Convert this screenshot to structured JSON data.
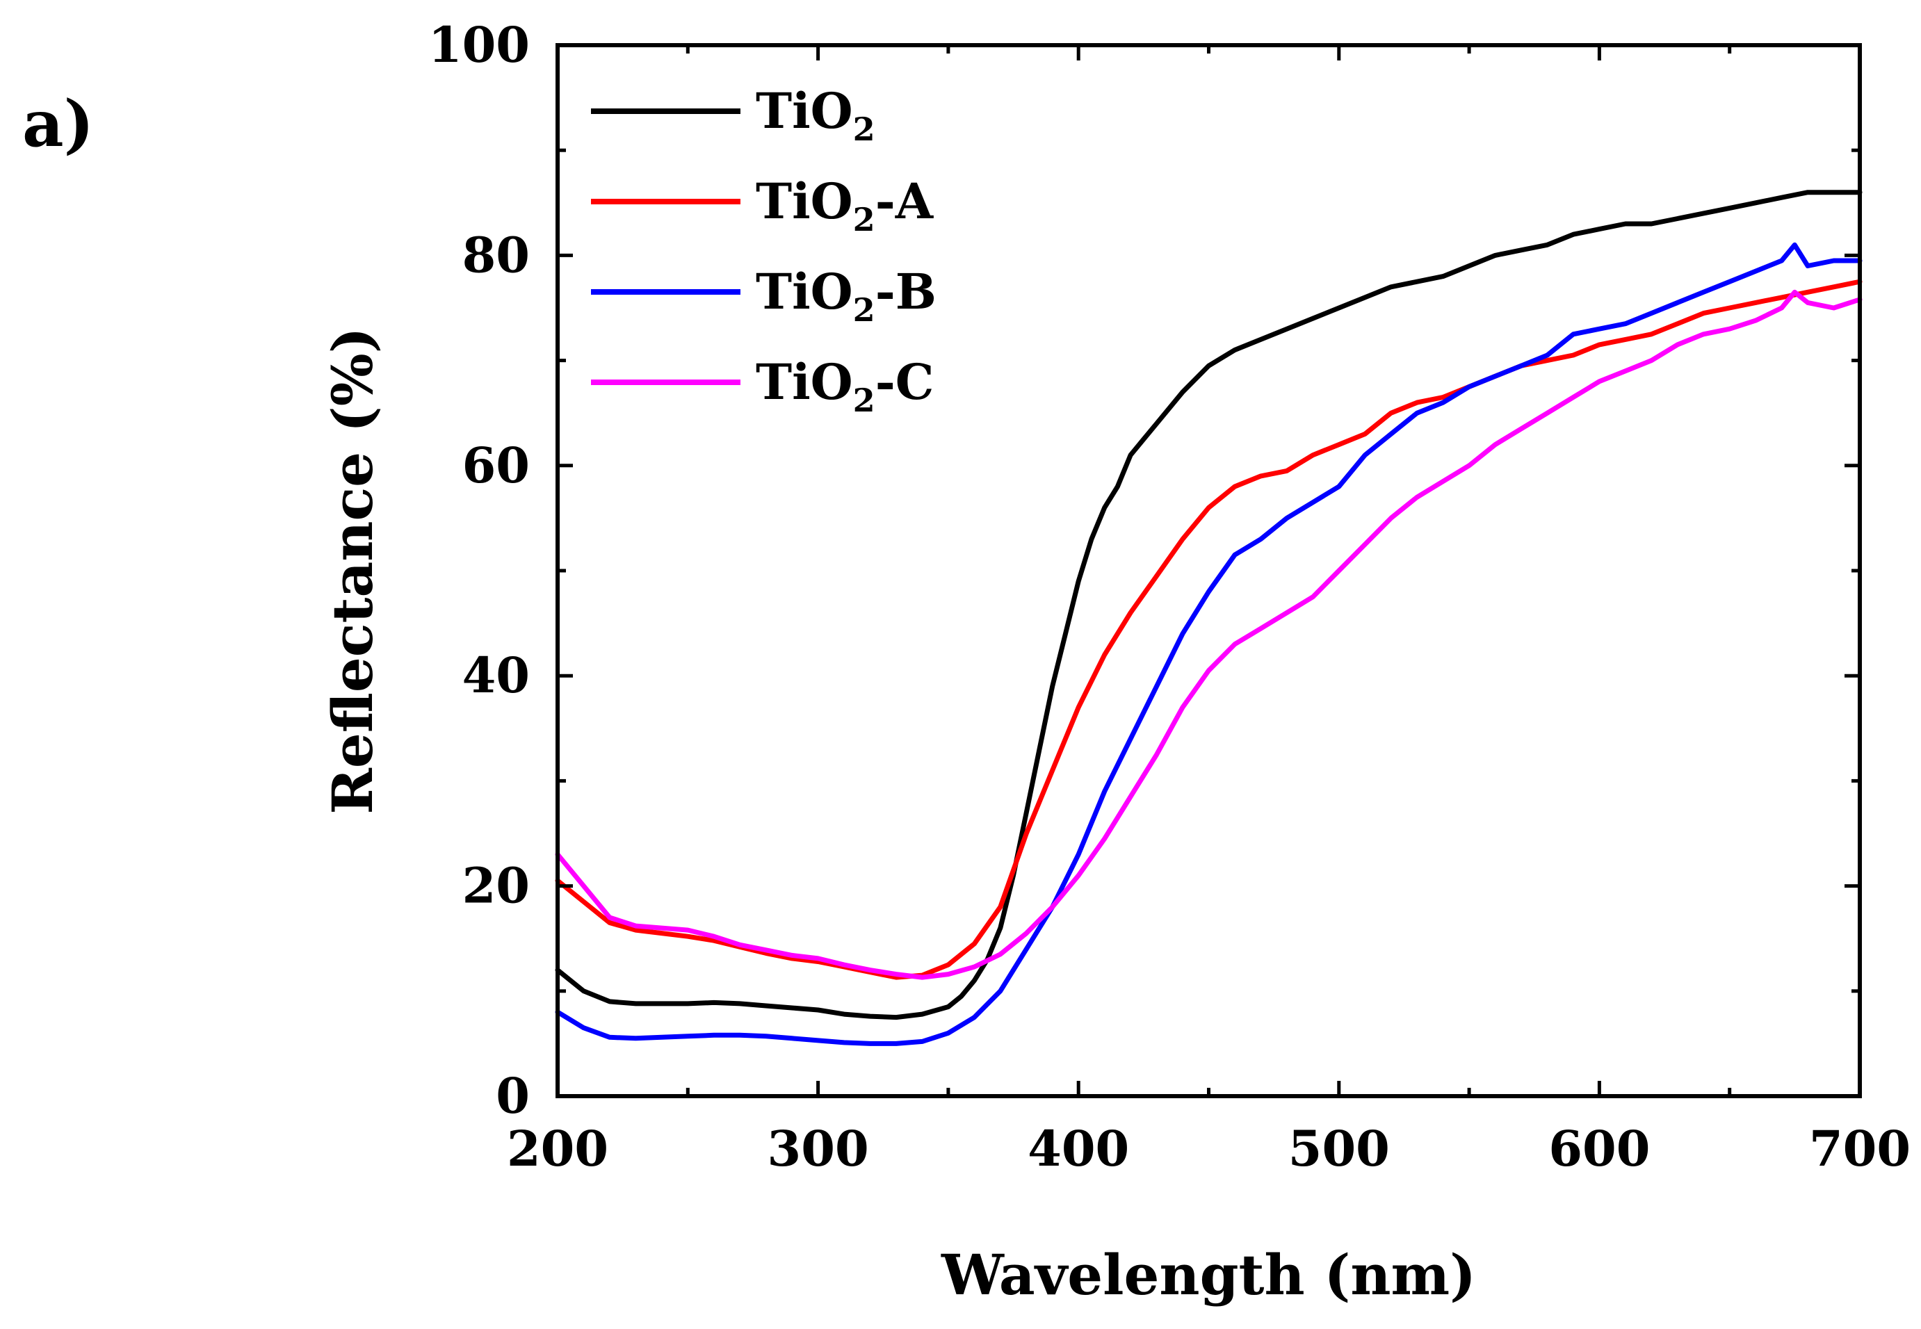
{
  "panel_label": "a)",
  "chart_data": {
    "type": "line",
    "title": "",
    "xlabel": "Wavelength (nm)",
    "ylabel": "Reflectance (%)",
    "xlim": [
      200,
      700
    ],
    "ylim": [
      0,
      100
    ],
    "xticks": [
      200,
      300,
      400,
      500,
      600,
      700
    ],
    "yticks": [
      0,
      20,
      40,
      60,
      80,
      100
    ],
    "grid": false,
    "legend": "top-left",
    "series": [
      {
        "name": "TiO2",
        "legend_base": "TiO",
        "legend_sub": "2",
        "legend_suffix": "",
        "color": "#000000",
        "x": [
          200,
          210,
          220,
          230,
          240,
          250,
          260,
          270,
          280,
          290,
          300,
          310,
          320,
          330,
          340,
          350,
          355,
          360,
          365,
          370,
          375,
          380,
          385,
          390,
          395,
          400,
          405,
          410,
          415,
          420,
          425,
          430,
          440,
          450,
          460,
          470,
          480,
          490,
          500,
          510,
          520,
          530,
          540,
          550,
          560,
          570,
          580,
          590,
          600,
          610,
          620,
          630,
          640,
          650,
          660,
          670,
          680,
          690,
          700
        ],
        "y": [
          12,
          10,
          9,
          8.8,
          8.8,
          8.8,
          8.9,
          8.8,
          8.6,
          8.4,
          8.2,
          7.8,
          7.6,
          7.5,
          7.8,
          8.5,
          9.5,
          11,
          13,
          16,
          21,
          27,
          33,
          39,
          44,
          49,
          53,
          56,
          58,
          61,
          62.5,
          64,
          67,
          69.5,
          71,
          72,
          73,
          74,
          75,
          76,
          77,
          77.5,
          78,
          79,
          80,
          80.5,
          81,
          82,
          82.5,
          83,
          83,
          83.5,
          84,
          84.5,
          85,
          85.5,
          86,
          86,
          86
        ]
      },
      {
        "name": "TiO2-A",
        "legend_base": "TiO",
        "legend_sub": "2",
        "legend_suffix": "-A",
        "color": "#ff0000",
        "x": [
          200,
          210,
          220,
          230,
          240,
          250,
          260,
          270,
          280,
          290,
          300,
          310,
          320,
          330,
          340,
          350,
          360,
          370,
          380,
          390,
          400,
          410,
          420,
          430,
          440,
          450,
          460,
          470,
          480,
          490,
          500,
          510,
          520,
          530,
          540,
          550,
          560,
          570,
          580,
          590,
          600,
          610,
          620,
          630,
          640,
          650,
          660,
          670,
          680,
          690,
          700
        ],
        "y": [
          20.5,
          18.5,
          16.5,
          15.8,
          15.5,
          15.2,
          14.8,
          14.2,
          13.6,
          13.1,
          12.8,
          12.3,
          11.8,
          11.3,
          11.5,
          12.5,
          14.5,
          18,
          25,
          31,
          37,
          42,
          46,
          49.5,
          53,
          56,
          58,
          59,
          59.5,
          61,
          62,
          63,
          65,
          66,
          66.5,
          67.5,
          68.5,
          69.5,
          70,
          70.5,
          71.5,
          72,
          72.5,
          73.5,
          74.5,
          75,
          75.5,
          76,
          76.5,
          77,
          77.5
        ]
      },
      {
        "name": "TiO2-B",
        "legend_base": "TiO",
        "legend_sub": "2",
        "legend_suffix": "-B",
        "color": "#0000ff",
        "x": [
          200,
          210,
          220,
          230,
          240,
          250,
          260,
          270,
          280,
          290,
          300,
          310,
          320,
          330,
          340,
          350,
          360,
          370,
          380,
          390,
          400,
          410,
          420,
          430,
          440,
          450,
          460,
          470,
          480,
          490,
          500,
          510,
          520,
          530,
          540,
          550,
          560,
          570,
          580,
          590,
          600,
          610,
          620,
          630,
          640,
          650,
          660,
          670,
          675,
          680,
          690,
          700
        ],
        "y": [
          8,
          6.5,
          5.6,
          5.5,
          5.6,
          5.7,
          5.8,
          5.8,
          5.7,
          5.5,
          5.3,
          5.1,
          5.0,
          5.0,
          5.2,
          6.0,
          7.5,
          10,
          14,
          18,
          23,
          29,
          34,
          39,
          44,
          48,
          51.5,
          53,
          55,
          56.5,
          58,
          61,
          63,
          65,
          66,
          67.5,
          68.5,
          69.5,
          70.5,
          72.5,
          73,
          73.5,
          74.5,
          75.5,
          76.5,
          77.5,
          78.5,
          79.5,
          81,
          79,
          79.5,
          79.5
        ]
      },
      {
        "name": "TiO2-C",
        "legend_base": "TiO",
        "legend_sub": "2",
        "legend_suffix": "-C",
        "color": "#ff00ff",
        "x": [
          200,
          210,
          220,
          230,
          240,
          250,
          260,
          270,
          280,
          290,
          300,
          310,
          320,
          330,
          340,
          350,
          360,
          370,
          380,
          390,
          400,
          410,
          420,
          430,
          440,
          450,
          460,
          470,
          480,
          490,
          500,
          510,
          520,
          530,
          540,
          550,
          560,
          570,
          580,
          590,
          600,
          610,
          620,
          630,
          640,
          650,
          660,
          670,
          675,
          680,
          690,
          700
        ],
        "y": [
          23,
          20,
          17,
          16.2,
          16,
          15.8,
          15.2,
          14.4,
          13.9,
          13.4,
          13.1,
          12.5,
          12.0,
          11.6,
          11.3,
          11.6,
          12.3,
          13.5,
          15.5,
          18,
          21,
          24.5,
          28.5,
          32.5,
          37,
          40.5,
          43,
          44.5,
          46,
          47.5,
          50,
          52.5,
          55,
          57,
          58.5,
          60,
          62,
          63.5,
          65,
          66.5,
          68,
          69,
          70,
          71.5,
          72.5,
          73,
          73.8,
          75,
          76.5,
          75.5,
          75,
          75.8
        ]
      }
    ]
  }
}
